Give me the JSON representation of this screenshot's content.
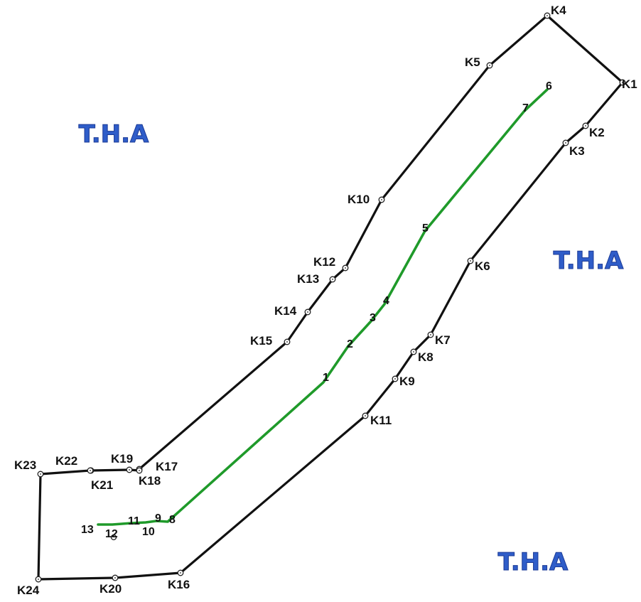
{
  "area_labels": [
    "T.H.A",
    "T.H.A",
    "T.H.A"
  ],
  "colors": {
    "boundary": "#111111",
    "centerline": "#1f9a2a",
    "area_label": "#2f5dc9"
  },
  "boundary_vertices": [
    "K1",
    "K2",
    "K3",
    "K4",
    "K5",
    "K6",
    "K7",
    "K8",
    "K9",
    "K10",
    "K11",
    "K12",
    "K13",
    "K14",
    "K15",
    "K16",
    "K17",
    "K18",
    "K19",
    "K20",
    "K21",
    "K22",
    "K23",
    "K24"
  ],
  "centerline_points": [
    "1",
    "2",
    "3",
    "4",
    "5",
    "6",
    "7",
    "8",
    "9",
    "10",
    "11",
    "12",
    "13"
  ]
}
